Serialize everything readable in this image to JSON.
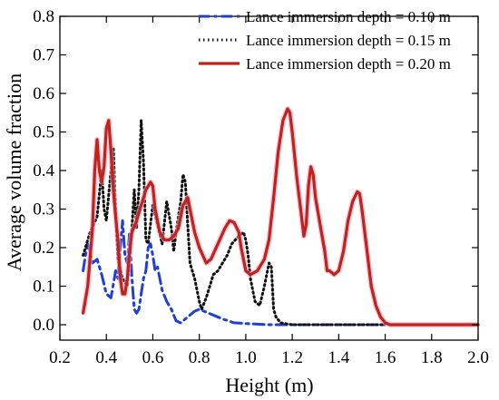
{
  "chart_data": {
    "type": "line",
    "title": "",
    "xlabel": "Height (m)",
    "ylabel": "Average volume fraction",
    "xlim": [
      0.2,
      2.0
    ],
    "ylim": [
      -0.04,
      0.8
    ],
    "x_ticks": [
      "0.2",
      "0.4",
      "0.6",
      "0.8",
      "1.0",
      "1.2",
      "1.4",
      "1.6",
      "1.8",
      "2.0"
    ],
    "y_ticks": [
      "0.0",
      "0.1",
      "0.2",
      "0.3",
      "0.4",
      "0.5",
      "0.6",
      "0.7",
      "0.8"
    ],
    "grid": false,
    "legend_position": "top-right",
    "series": [
      {
        "name": "Lance immersion depth = 0.10 m",
        "color": "#1f3fd6",
        "style": "dashdot",
        "points": [
          [
            0.3,
            0.14
          ],
          [
            0.31,
            0.18
          ],
          [
            0.32,
            0.21
          ],
          [
            0.33,
            0.19
          ],
          [
            0.34,
            0.16
          ],
          [
            0.36,
            0.17
          ],
          [
            0.38,
            0.13
          ],
          [
            0.4,
            0.08
          ],
          [
            0.42,
            0.07
          ],
          [
            0.44,
            0.14
          ],
          [
            0.45,
            0.12
          ],
          [
            0.46,
            0.2
          ],
          [
            0.47,
            0.27
          ],
          [
            0.48,
            0.18
          ],
          [
            0.49,
            0.16
          ],
          [
            0.5,
            0.24
          ],
          [
            0.51,
            0.12
          ],
          [
            0.52,
            0.04
          ],
          [
            0.53,
            0.03
          ],
          [
            0.54,
            0.04
          ],
          [
            0.55,
            0.08
          ],
          [
            0.56,
            0.12
          ],
          [
            0.57,
            0.14
          ],
          [
            0.58,
            0.2
          ],
          [
            0.59,
            0.21
          ],
          [
            0.6,
            0.18
          ],
          [
            0.61,
            0.14
          ],
          [
            0.62,
            0.15
          ],
          [
            0.63,
            0.12
          ],
          [
            0.64,
            0.09
          ],
          [
            0.66,
            0.06
          ],
          [
            0.68,
            0.04
          ],
          [
            0.7,
            0.01
          ],
          [
            0.72,
            0.005
          ],
          [
            0.75,
            0.02
          ],
          [
            0.78,
            0.035
          ],
          [
            0.8,
            0.04
          ],
          [
            0.82,
            0.035
          ],
          [
            0.86,
            0.025
          ],
          [
            0.9,
            0.015
          ],
          [
            0.95,
            0.005
          ],
          [
            1.0,
            0.003
          ],
          [
            1.1,
            0.0
          ],
          [
            1.3,
            0.0
          ],
          [
            1.5,
            0.0
          ],
          [
            1.6,
            0.0
          ]
        ]
      },
      {
        "name": "Lance immersion depth = 0.15 m",
        "color": "#111111",
        "style": "dotted",
        "points": [
          [
            0.3,
            0.18
          ],
          [
            0.33,
            0.24
          ],
          [
            0.36,
            0.28
          ],
          [
            0.38,
            0.4
          ],
          [
            0.39,
            0.3
          ],
          [
            0.4,
            0.27
          ],
          [
            0.42,
            0.4
          ],
          [
            0.43,
            0.46
          ],
          [
            0.44,
            0.29
          ],
          [
            0.45,
            0.17
          ],
          [
            0.47,
            0.12
          ],
          [
            0.49,
            0.1
          ],
          [
            0.51,
            0.25
          ],
          [
            0.52,
            0.35
          ],
          [
            0.53,
            0.25
          ],
          [
            0.54,
            0.35
          ],
          [
            0.55,
            0.53
          ],
          [
            0.56,
            0.42
          ],
          [
            0.57,
            0.22
          ],
          [
            0.58,
            0.21
          ],
          [
            0.6,
            0.31
          ],
          [
            0.62,
            0.26
          ],
          [
            0.64,
            0.21
          ],
          [
            0.66,
            0.32
          ],
          [
            0.68,
            0.25
          ],
          [
            0.69,
            0.19
          ],
          [
            0.7,
            0.24
          ],
          [
            0.72,
            0.32
          ],
          [
            0.73,
            0.39
          ],
          [
            0.74,
            0.37
          ],
          [
            0.75,
            0.26
          ],
          [
            0.76,
            0.16
          ],
          [
            0.78,
            0.12
          ],
          [
            0.8,
            0.06
          ],
          [
            0.81,
            0.04
          ],
          [
            0.83,
            0.07
          ],
          [
            0.85,
            0.11
          ],
          [
            0.86,
            0.13
          ],
          [
            0.88,
            0.14
          ],
          [
            0.9,
            0.16
          ],
          [
            0.92,
            0.18
          ],
          [
            0.94,
            0.21
          ],
          [
            0.97,
            0.23
          ],
          [
            0.99,
            0.24
          ],
          [
            1.0,
            0.22
          ],
          [
            1.01,
            0.18
          ],
          [
            1.02,
            0.12
          ],
          [
            1.04,
            0.06
          ],
          [
            1.06,
            0.05
          ],
          [
            1.08,
            0.1
          ],
          [
            1.1,
            0.16
          ],
          [
            1.11,
            0.15
          ],
          [
            1.12,
            0.04
          ],
          [
            1.13,
            0.02
          ],
          [
            1.15,
            0.005
          ],
          [
            1.2,
            0.0
          ],
          [
            1.4,
            0.0
          ],
          [
            1.6,
            0.0
          ]
        ]
      },
      {
        "name": "Lance immersion depth = 0.20 m",
        "color": "#c0231c",
        "style": "solid",
        "points": [
          [
            0.3,
            0.03
          ],
          [
            0.32,
            0.1
          ],
          [
            0.34,
            0.25
          ],
          [
            0.35,
            0.4
          ],
          [
            0.36,
            0.48
          ],
          [
            0.37,
            0.4
          ],
          [
            0.38,
            0.37
          ],
          [
            0.39,
            0.41
          ],
          [
            0.4,
            0.51
          ],
          [
            0.41,
            0.53
          ],
          [
            0.42,
            0.45
          ],
          [
            0.43,
            0.35
          ],
          [
            0.44,
            0.28
          ],
          [
            0.45,
            0.22
          ],
          [
            0.46,
            0.12
          ],
          [
            0.47,
            0.08
          ],
          [
            0.48,
            0.08
          ],
          [
            0.49,
            0.12
          ],
          [
            0.5,
            0.19
          ],
          [
            0.51,
            0.24
          ],
          [
            0.53,
            0.27
          ],
          [
            0.55,
            0.31
          ],
          [
            0.57,
            0.35
          ],
          [
            0.59,
            0.37
          ],
          [
            0.6,
            0.36
          ],
          [
            0.61,
            0.3
          ],
          [
            0.63,
            0.24
          ],
          [
            0.65,
            0.22
          ],
          [
            0.67,
            0.22
          ],
          [
            0.69,
            0.23
          ],
          [
            0.71,
            0.25
          ],
          [
            0.73,
            0.31
          ],
          [
            0.75,
            0.33
          ],
          [
            0.76,
            0.3
          ],
          [
            0.78,
            0.24
          ],
          [
            0.8,
            0.2
          ],
          [
            0.83,
            0.16
          ],
          [
            0.85,
            0.17
          ],
          [
            0.88,
            0.21
          ],
          [
            0.91,
            0.25
          ],
          [
            0.93,
            0.27
          ],
          [
            0.95,
            0.265
          ],
          [
            0.97,
            0.24
          ],
          [
            0.98,
            0.2
          ],
          [
            1.0,
            0.14
          ],
          [
            1.02,
            0.13
          ],
          [
            1.05,
            0.14
          ],
          [
            1.08,
            0.17
          ],
          [
            1.1,
            0.22
          ],
          [
            1.12,
            0.33
          ],
          [
            1.14,
            0.45
          ],
          [
            1.16,
            0.53
          ],
          [
            1.18,
            0.56
          ],
          [
            1.19,
            0.55
          ],
          [
            1.2,
            0.5
          ],
          [
            1.22,
            0.38
          ],
          [
            1.24,
            0.28
          ],
          [
            1.25,
            0.23
          ],
          [
            1.26,
            0.26
          ],
          [
            1.27,
            0.36
          ],
          [
            1.28,
            0.41
          ],
          [
            1.29,
            0.39
          ],
          [
            1.3,
            0.33
          ],
          [
            1.32,
            0.26
          ],
          [
            1.34,
            0.19
          ],
          [
            1.35,
            0.14
          ],
          [
            1.36,
            0.14
          ],
          [
            1.38,
            0.13
          ],
          [
            1.4,
            0.14
          ],
          [
            1.42,
            0.19
          ],
          [
            1.44,
            0.27
          ],
          [
            1.46,
            0.32
          ],
          [
            1.48,
            0.345
          ],
          [
            1.49,
            0.34
          ],
          [
            1.5,
            0.3
          ],
          [
            1.52,
            0.2
          ],
          [
            1.54,
            0.1
          ],
          [
            1.56,
            0.05
          ],
          [
            1.58,
            0.02
          ],
          [
            1.6,
            0.005
          ],
          [
            1.62,
            0.0
          ],
          [
            1.7,
            0.0
          ],
          [
            1.8,
            0.0
          ],
          [
            1.9,
            0.0
          ],
          [
            2.0,
            0.0
          ]
        ]
      }
    ]
  }
}
